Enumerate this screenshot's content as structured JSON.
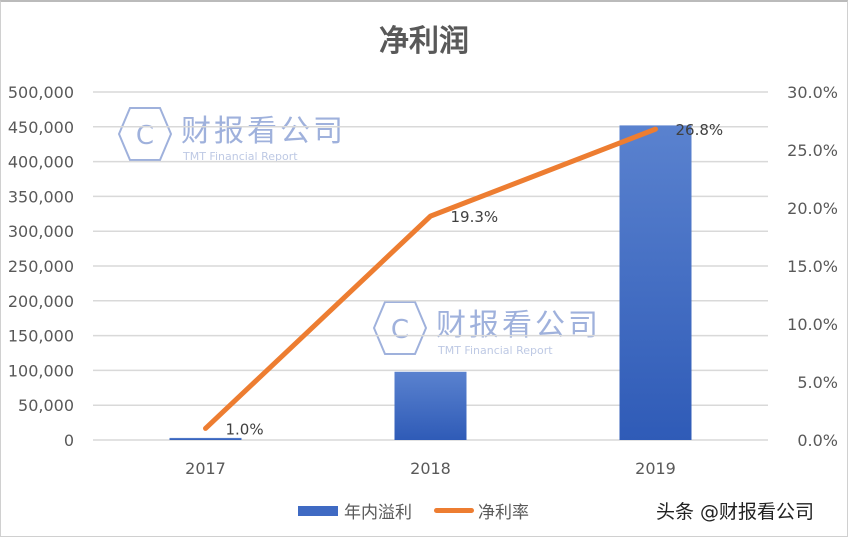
{
  "chart_data": {
    "type": "bar",
    "title": "净利润",
    "categories": [
      "2017",
      "2018",
      "2019"
    ],
    "series": [
      {
        "name": "年内溢利",
        "type": "bar",
        "axis": "left",
        "color": "#4472c4",
        "values": [
          3000,
          98000,
          452000
        ]
      },
      {
        "name": "净利率",
        "type": "line",
        "axis": "right",
        "color": "#ed7d31",
        "values": [
          1.0,
          19.3,
          26.8
        ],
        "labels": [
          "1.0%",
          "19.3%",
          "26.8%"
        ]
      }
    ],
    "y_left": {
      "ylim": [
        0,
        500000
      ],
      "ticks": [
        "0",
        "50,000",
        "100,000",
        "150,000",
        "200,000",
        "250,000",
        "300,000",
        "350,000",
        "400,000",
        "450,000",
        "500,000"
      ]
    },
    "y_right": {
      "ylim": [
        0,
        30
      ],
      "ticks": [
        "0.0%",
        "5.0%",
        "10.0%",
        "15.0%",
        "20.0%",
        "25.0%",
        "30.0%"
      ]
    },
    "grid": true,
    "legend_position": "bottom"
  },
  "title": "净利润",
  "legend": {
    "bar": "年内溢利",
    "line": "净利率"
  },
  "watermark": {
    "name": "财报看公司",
    "sub": "TMT Financial Report",
    "logo": "C"
  },
  "credit": "头条 @财报看公司"
}
